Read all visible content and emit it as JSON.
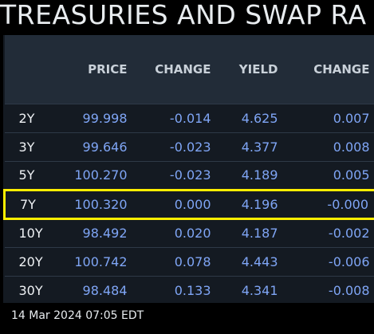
{
  "header": {
    "title": "TREASURIES AND SWAP RA"
  },
  "table": {
    "columns": [
      "PRICE",
      "CHANGE",
      "YIELD",
      "CHANGE"
    ],
    "rows": [
      [
        "2Y",
        "99.998",
        "-0.014",
        "4.625",
        "0.007"
      ],
      [
        "3Y",
        "99.646",
        "-0.023",
        "4.377",
        "0.008"
      ],
      [
        "5Y",
        "100.270",
        "-0.023",
        "4.189",
        "0.005"
      ],
      [
        "7Y",
        "100.320",
        "0.000",
        "4.196",
        "-0.000"
      ],
      [
        "10Y",
        "98.492",
        "0.020",
        "4.187",
        "-0.002"
      ],
      [
        "20Y",
        "100.742",
        "0.078",
        "4.443",
        "-0.006"
      ],
      [
        "30Y",
        "98.484",
        "0.133",
        "4.341",
        "-0.008"
      ]
    ]
  },
  "footer": {
    "timestamp": "14 Mar 2024 07:05 EDT"
  }
}
